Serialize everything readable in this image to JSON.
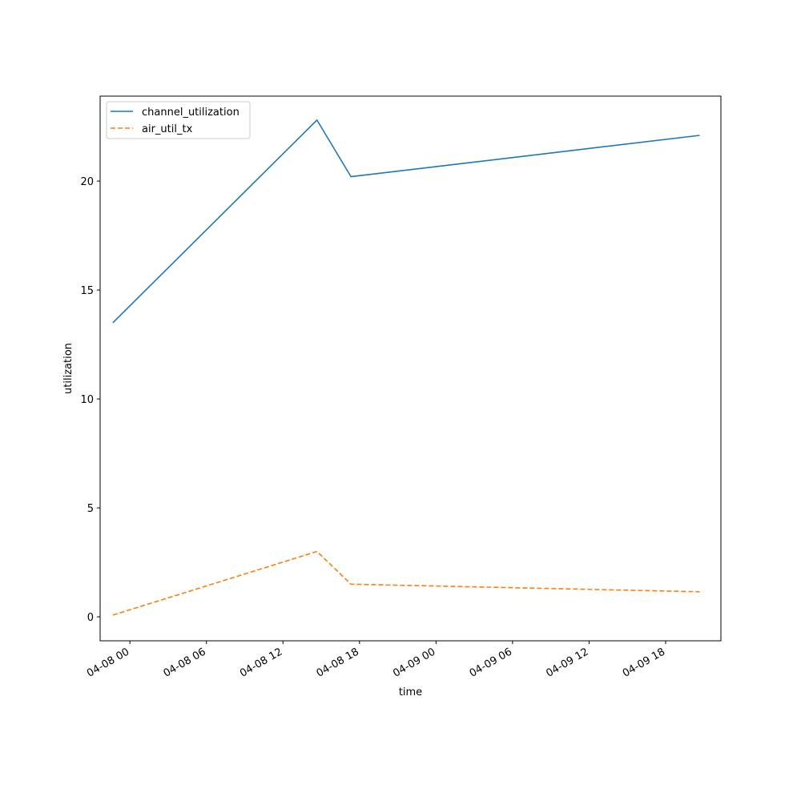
{
  "chart_data": {
    "type": "line",
    "title": "",
    "xlabel": "time",
    "ylabel": "utilization",
    "x": [
      "04-07 22:40",
      "04-08 14:40",
      "04-08 17:20",
      "04-09 20:40"
    ],
    "xlim": [
      "04-07 21:40",
      "04-09 22:20"
    ],
    "ylim": [
      -1.1,
      23.9
    ],
    "x_ticks": [
      "04-08 00",
      "04-08 06",
      "04-08 12",
      "04-08 18",
      "04-09 00",
      "04-09 06",
      "04-09 12",
      "04-09 18"
    ],
    "y_ticks": [
      0,
      5,
      10,
      15,
      20
    ],
    "grid": false,
    "legend_position": "top-left",
    "series": [
      {
        "name": "channel_utilization",
        "values": [
          13.5,
          22.8,
          20.2,
          22.1
        ],
        "color": "#1f77b4",
        "style": "solid"
      },
      {
        "name": "air_util_tx",
        "values": [
          0.08,
          3.0,
          1.5,
          1.15
        ],
        "color": "#ff7f0e",
        "style": "dashed"
      }
    ]
  }
}
